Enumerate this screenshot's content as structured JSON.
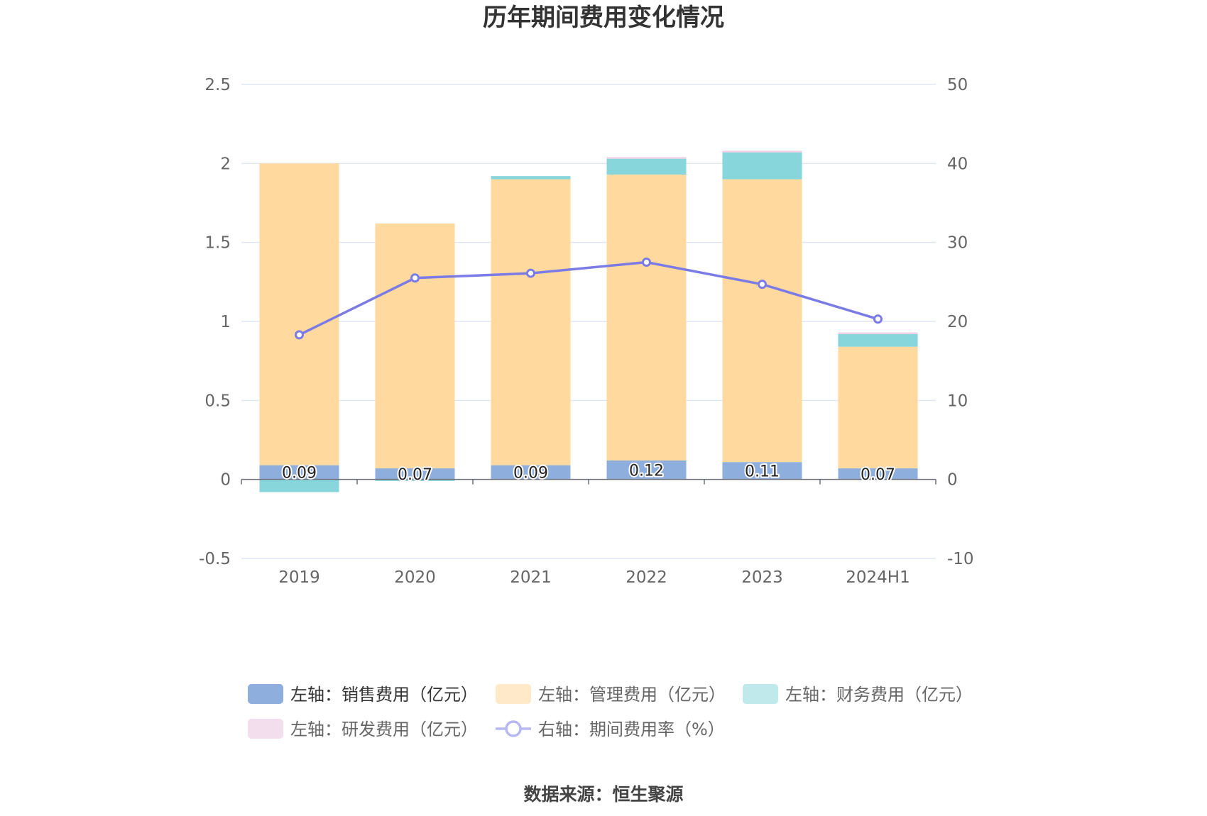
{
  "chart_data": {
    "type": "bar",
    "title": "历年期间费用变化情况",
    "categories": [
      "2019",
      "2020",
      "2021",
      "2022",
      "2023",
      "2024H1"
    ],
    "y_left": {
      "min": -0.5,
      "max": 2.5,
      "ticks": [
        "2.5",
        "2",
        "1.5",
        "1",
        "0.5",
        "0",
        "-0.5"
      ]
    },
    "y_right": {
      "min": -10,
      "max": 50,
      "ticks": [
        "50",
        "40",
        "30",
        "20",
        "10",
        "0",
        "-10"
      ]
    },
    "grid": true,
    "legend_position": "bottom",
    "series": [
      {
        "name": "左轴：销售费用（亿元）",
        "type": "bar",
        "axis": "left",
        "stack": "total",
        "color": "#8eaedd",
        "values": [
          0.09,
          0.07,
          0.09,
          0.12,
          0.11,
          0.07
        ],
        "labels": [
          "0.09",
          "0.07",
          "0.09",
          "0.12",
          "0.11",
          "0.07"
        ]
      },
      {
        "name": "左轴：管理费用（亿元）",
        "type": "bar",
        "axis": "left",
        "stack": "total",
        "color": "#ffd99e",
        "values": [
          1.91,
          1.55,
          1.81,
          1.81,
          1.79,
          0.77
        ]
      },
      {
        "name": "左轴：财务费用（亿元）",
        "type": "bar",
        "axis": "left",
        "stack": "total",
        "color": "#86d6db",
        "values": [
          -0.08,
          -0.01,
          0.02,
          0.1,
          0.17,
          0.08
        ]
      },
      {
        "name": "左轴：研发费用（亿元）",
        "type": "bar",
        "axis": "left",
        "stack": "total",
        "color": "#f0cfe6",
        "values": [
          0,
          0,
          0,
          0.01,
          0.01,
          0.01
        ]
      },
      {
        "name": "右轴：期间费用率（%）",
        "type": "line",
        "axis": "right",
        "color": "#7b7be6",
        "values": [
          18.3,
          25.5,
          26.1,
          27.5,
          24.7,
          20.3
        ]
      }
    ]
  },
  "legend": {
    "items": [
      {
        "label": "左轴：销售费用（亿元）",
        "color": "#8eaedd",
        "kind": "bar",
        "active": true
      },
      {
        "label": "左轴：管理费用（亿元）",
        "color": "#ffe9c8",
        "kind": "bar",
        "active": false
      },
      {
        "label": "左轴：财务费用（亿元）",
        "color": "#bfe9eb",
        "kind": "bar",
        "active": false
      },
      {
        "label": "左轴：研发费用（亿元）",
        "color": "#f3deee",
        "kind": "bar",
        "active": false
      },
      {
        "label": "右轴：期间费用率（%）",
        "color": "#b7b7f2",
        "kind": "line",
        "active": false
      }
    ]
  },
  "footer": {
    "source": "数据来源：恒生聚源"
  }
}
